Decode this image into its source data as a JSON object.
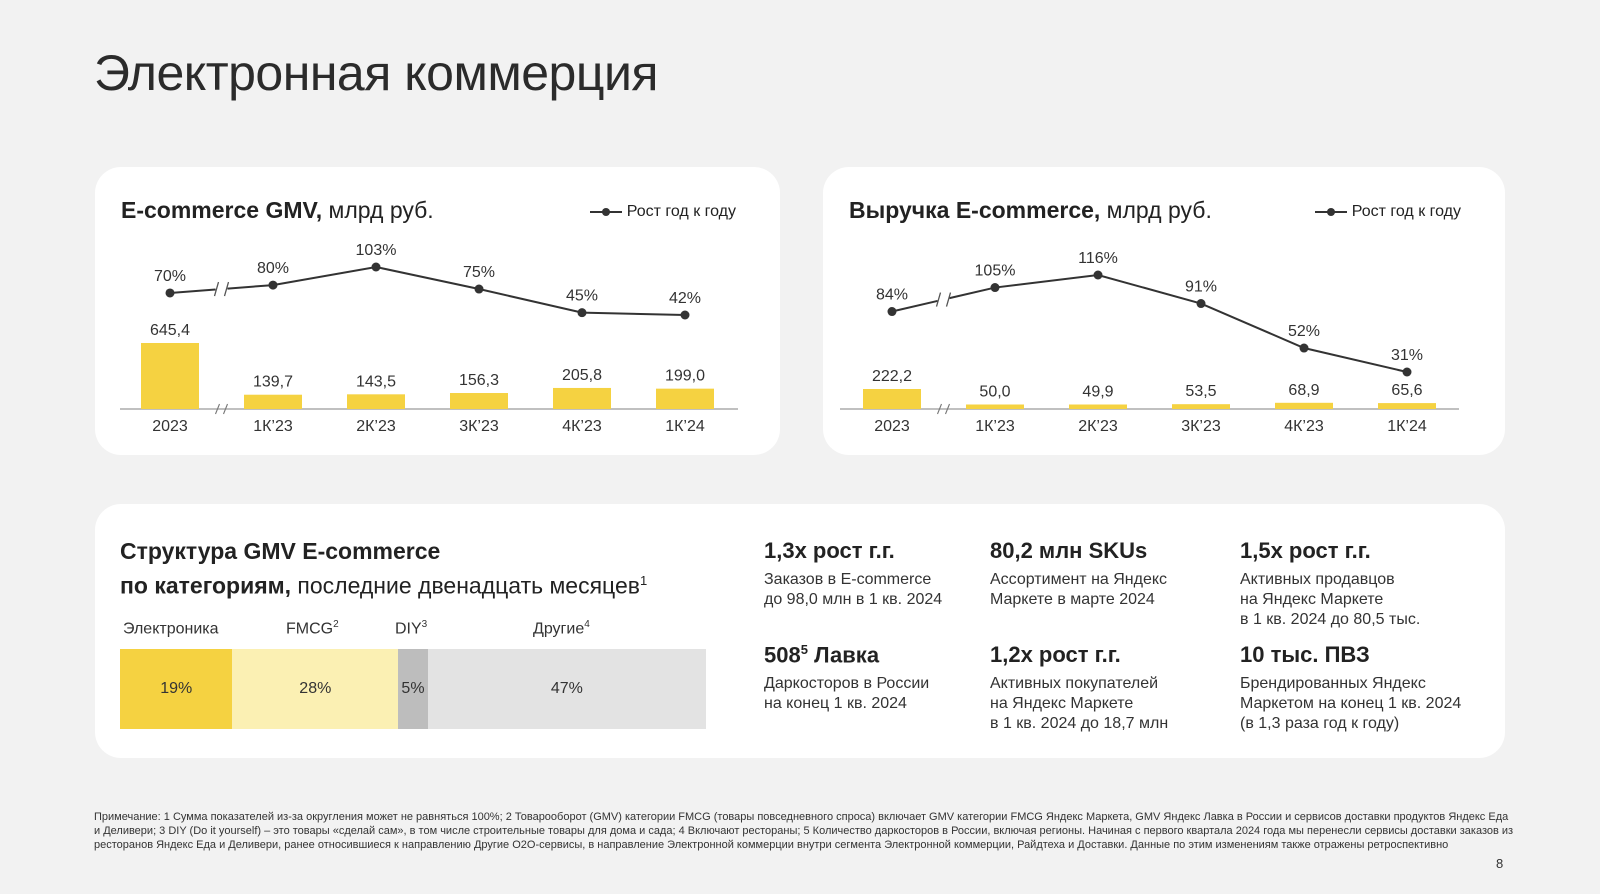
{
  "page": {
    "title": "Электронная коммерция",
    "page_number": "8"
  },
  "legend_label": "Рост год к году",
  "gmv_card": {
    "title_bold": "E-commerce GMV,",
    "title_rest": " млрд руб."
  },
  "revenue_card": {
    "title_bold": "Выручка E-commerce,",
    "title_rest": " млрд руб."
  },
  "chart_data": [
    {
      "type": "bar",
      "title": "E-commerce GMV, млрд руб.",
      "categories": [
        "2023",
        "1К’23",
        "2К’23",
        "3К’23",
        "4К’23",
        "1К’24"
      ],
      "values": [
        645.4,
        139.7,
        143.5,
        156.3,
        205.8,
        199.0
      ],
      "value_labels": [
        "645,4",
        "139,7",
        "143,5",
        "156,3",
        "205,8",
        "199,0"
      ],
      "growth": [
        70,
        80,
        103,
        75,
        45,
        42
      ],
      "growth_labels": [
        "70%",
        "80%",
        "103%",
        "75%",
        "45%",
        "42%"
      ],
      "growth_series_name": "Рост год к году",
      "axis_break_after_first": true,
      "bar_color": "#f5d241",
      "line_color": "#333333"
    },
    {
      "type": "bar",
      "title": "Выручка E-commerce, млрд руб.",
      "categories": [
        "2023",
        "1К’23",
        "2К’23",
        "3К’23",
        "4К’23",
        "1К’24"
      ],
      "values": [
        222.2,
        50.0,
        49.9,
        53.5,
        68.9,
        65.6
      ],
      "value_labels": [
        "222,2",
        "50,0",
        "49,9",
        "53,5",
        "68,9",
        "65,6"
      ],
      "growth": [
        84,
        105,
        116,
        91,
        52,
        31
      ],
      "growth_labels": [
        "84%",
        "105%",
        "116%",
        "91%",
        "52%",
        "31%"
      ],
      "growth_series_name": "Рост год к году",
      "axis_break_after_first": true,
      "bar_color": "#f5d241",
      "line_color": "#333333"
    },
    {
      "type": "bar",
      "stacked": true,
      "title": "Структура GMV E-commerce по категориям, последние двенадцать месяцев",
      "categories": [
        "Электроника",
        "FMCG",
        "DIY",
        "Другие"
      ],
      "values": [
        19,
        28,
        5,
        47
      ],
      "value_labels": [
        "19%",
        "28%",
        "5%",
        "47%"
      ],
      "colors": [
        "#f5d241",
        "#fbf0b3",
        "#bdbdbd",
        "#e3e3e3"
      ]
    }
  ],
  "structure": {
    "title_line1": "Структура GMV E-commerce",
    "title_line2_bold": "по категориям,",
    "title_line2_rest": " последние двенадцать месяцев",
    "title_sup": "1",
    "labels": [
      {
        "text": "Электроника",
        "sup": ""
      },
      {
        "text": "FMCG",
        "sup": "2"
      },
      {
        "text": "DIY",
        "sup": "3"
      },
      {
        "text": "Другие",
        "sup": "4"
      }
    ]
  },
  "metrics": [
    {
      "head": "1,3x рост г.г.",
      "sup": "",
      "head_rest": "",
      "body": [
        "Заказов в E-commerce",
        "до 98,0 млн в 1 кв. 2024"
      ]
    },
    {
      "head": "80,2 млн SKUs",
      "sup": "",
      "head_rest": "",
      "body": [
        "Ассортимент на  Яндекс",
        "Маркете в марте 2024"
      ]
    },
    {
      "head": "1,5x рост г.г.",
      "sup": "",
      "head_rest": "",
      "body": [
        "Активных продавцов",
        "на Яндекс Маркете",
        "в 1 кв. 2024 до 80,5 тыс."
      ]
    },
    {
      "head": "508",
      "sup": "5",
      "head_rest": " Лавка",
      "body": [
        "Даркосторов в России",
        "на конец 1 кв. 2024"
      ]
    },
    {
      "head": "1,2x рост г.г.",
      "sup": "",
      "head_rest": "",
      "body": [
        "Активных покупателей",
        "на Яндекс Маркете",
        "в 1 кв. 2024 до 18,7 млн"
      ]
    },
    {
      "head": "10 тыс. ПВЗ",
      "sup": "",
      "head_rest": "",
      "body": [
        "Брендированных Яндекс",
        "Маркетом на конец 1 кв. 2024",
        "(в 1,3 раза год к году)"
      ]
    }
  ],
  "footnote": "Примечание: 1 Сумма показателей из-за округления может не равняться 100%;  2 Товарооборот (GMV) категории FMCG (товары повседневного спроса) включает GMV категории FMCG Яндекс Маркета, GMV Яндекс Лавка в России и сервисов доставки продуктов Яндекс Еда и Деливери; 3 DIY (Do it yourself) – это товары «сделай сам», в том числе строительные товары для дома и сада; 4 Включают рестораны; 5 Количество даркосторов в России, включая регионы. Начиная с первого квартала 2024 года мы перенесли сервисы доставки заказов из ресторанов Яндекс Еда и Деливери, ранее относившиеся к направлению Другие O2O-сервисы, в направление Электронной коммерции внутри сегмента Электронной коммерции, Райдтеха и Доставки. Данные по этим изменениям также отражены ретроспективно"
}
